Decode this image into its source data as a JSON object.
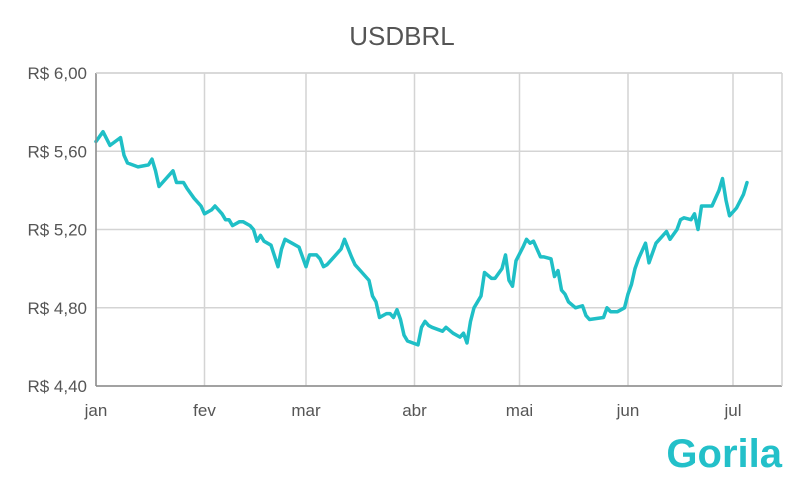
{
  "chart_data": {
    "type": "line",
    "title": "USDBRL",
    "xlabel": "",
    "ylabel": "",
    "ylim": [
      4.4,
      6.0
    ],
    "yticks": [
      {
        "value": 4.4,
        "label": "R$ 4,40"
      },
      {
        "value": 4.8,
        "label": "R$ 4,80"
      },
      {
        "value": 5.2,
        "label": "R$ 5,20"
      },
      {
        "value": 5.6,
        "label": "R$ 5,60"
      },
      {
        "value": 6.0,
        "label": "R$ 6,00"
      }
    ],
    "xlim": [
      "2020-01-01",
      "2020-07-15"
    ],
    "xticks": [
      {
        "date": "2020-01-01",
        "label": "jan"
      },
      {
        "date": "2020-02-01",
        "label": "fev"
      },
      {
        "date": "2020-03-01",
        "label": "mar"
      },
      {
        "date": "2020-04-01",
        "label": "abr"
      },
      {
        "date": "2020-05-01",
        "label": "mai"
      },
      {
        "date": "2020-06-01",
        "label": "jun"
      },
      {
        "date": "2020-07-01",
        "label": "jul"
      }
    ],
    "grid": true,
    "color": "#1fbfc6",
    "series": [
      {
        "values": [
          [
            "2020-01-01",
            5.65
          ],
          [
            "2020-01-03",
            5.7
          ],
          [
            "2020-01-05",
            5.63
          ],
          [
            "2020-01-08",
            5.67
          ],
          [
            "2020-01-09",
            5.58
          ],
          [
            "2020-01-10",
            5.54
          ],
          [
            "2020-01-13",
            5.52
          ],
          [
            "2020-01-16",
            5.53
          ],
          [
            "2020-01-17",
            5.56
          ],
          [
            "2020-01-18",
            5.5
          ],
          [
            "2020-01-19",
            5.42
          ],
          [
            "2020-01-21",
            5.46
          ],
          [
            "2020-01-23",
            5.5
          ],
          [
            "2020-01-24",
            5.44
          ],
          [
            "2020-01-26",
            5.44
          ],
          [
            "2020-01-27",
            5.41
          ],
          [
            "2020-01-29",
            5.36
          ],
          [
            "2020-01-31",
            5.32
          ],
          [
            "2020-02-01",
            5.28
          ],
          [
            "2020-02-03",
            5.3
          ],
          [
            "2020-02-04",
            5.32
          ],
          [
            "2020-02-06",
            5.28
          ],
          [
            "2020-02-07",
            5.25
          ],
          [
            "2020-02-08",
            5.25
          ],
          [
            "2020-02-09",
            5.22
          ],
          [
            "2020-02-11",
            5.24
          ],
          [
            "2020-02-12",
            5.24
          ],
          [
            "2020-02-14",
            5.22
          ],
          [
            "2020-02-15",
            5.2
          ],
          [
            "2020-02-16",
            5.14
          ],
          [
            "2020-02-17",
            5.17
          ],
          [
            "2020-02-18",
            5.14
          ],
          [
            "2020-02-20",
            5.12
          ],
          [
            "2020-02-22",
            5.01
          ],
          [
            "2020-02-23",
            5.1
          ],
          [
            "2020-02-24",
            5.15
          ],
          [
            "2020-02-26",
            5.13
          ],
          [
            "2020-02-28",
            5.11
          ],
          [
            "2020-03-01",
            5.01
          ],
          [
            "2020-03-02",
            5.07
          ],
          [
            "2020-03-04",
            5.07
          ],
          [
            "2020-03-05",
            5.05
          ],
          [
            "2020-03-06",
            5.01
          ],
          [
            "2020-03-07",
            5.02
          ],
          [
            "2020-03-09",
            5.06
          ],
          [
            "2020-03-11",
            5.1
          ],
          [
            "2020-03-12",
            5.15
          ],
          [
            "2020-03-14",
            5.06
          ],
          [
            "2020-03-15",
            5.02
          ],
          [
            "2020-03-17",
            4.98
          ],
          [
            "2020-03-19",
            4.94
          ],
          [
            "2020-03-20",
            4.86
          ],
          [
            "2020-03-21",
            4.83
          ],
          [
            "2020-03-22",
            4.75
          ],
          [
            "2020-03-24",
            4.77
          ],
          [
            "2020-03-25",
            4.77
          ],
          [
            "2020-03-26",
            4.75
          ],
          [
            "2020-03-27",
            4.79
          ],
          [
            "2020-03-28",
            4.74
          ],
          [
            "2020-03-29",
            4.66
          ],
          [
            "2020-03-30",
            4.63
          ],
          [
            "2020-04-02",
            4.61
          ],
          [
            "2020-04-03",
            4.7
          ],
          [
            "2020-04-04",
            4.73
          ],
          [
            "2020-04-05",
            4.71
          ],
          [
            "2020-04-06",
            4.7
          ],
          [
            "2020-04-09",
            4.68
          ],
          [
            "2020-04-10",
            4.7
          ],
          [
            "2020-04-12",
            4.67
          ],
          [
            "2020-04-14",
            4.65
          ],
          [
            "2020-04-15",
            4.67
          ],
          [
            "2020-04-16",
            4.62
          ],
          [
            "2020-04-17",
            4.73
          ],
          [
            "2020-04-18",
            4.8
          ],
          [
            "2020-04-20",
            4.86
          ],
          [
            "2020-04-21",
            4.98
          ],
          [
            "2020-04-23",
            4.95
          ],
          [
            "2020-04-24",
            4.95
          ],
          [
            "2020-04-26",
            5.0
          ],
          [
            "2020-04-27",
            5.07
          ],
          [
            "2020-04-28",
            4.94
          ],
          [
            "2020-04-29",
            4.91
          ],
          [
            "2020-04-30",
            5.04
          ],
          [
            "2020-05-02",
            5.11
          ],
          [
            "2020-05-03",
            5.15
          ],
          [
            "2020-05-04",
            5.13
          ],
          [
            "2020-05-05",
            5.14
          ],
          [
            "2020-05-07",
            5.06
          ],
          [
            "2020-05-08",
            5.06
          ],
          [
            "2020-05-10",
            5.05
          ],
          [
            "2020-05-11",
            4.96
          ],
          [
            "2020-05-12",
            4.99
          ],
          [
            "2020-05-13",
            4.89
          ],
          [
            "2020-05-14",
            4.87
          ],
          [
            "2020-05-15",
            4.83
          ],
          [
            "2020-05-17",
            4.8
          ],
          [
            "2020-05-19",
            4.81
          ],
          [
            "2020-05-20",
            4.76
          ],
          [
            "2020-05-21",
            4.74
          ],
          [
            "2020-05-25",
            4.75
          ],
          [
            "2020-05-26",
            4.8
          ],
          [
            "2020-05-27",
            4.78
          ],
          [
            "2020-05-29",
            4.78
          ],
          [
            "2020-05-31",
            4.8
          ],
          [
            "2020-06-01",
            4.87
          ],
          [
            "2020-06-02",
            4.92
          ],
          [
            "2020-06-03",
            5.0
          ],
          [
            "2020-06-04",
            5.05
          ],
          [
            "2020-06-06",
            5.13
          ],
          [
            "2020-06-07",
            5.03
          ],
          [
            "2020-06-09",
            5.13
          ],
          [
            "2020-06-10",
            5.15
          ],
          [
            "2020-06-12",
            5.19
          ],
          [
            "2020-06-13",
            5.15
          ],
          [
            "2020-06-15",
            5.2
          ],
          [
            "2020-06-16",
            5.25
          ],
          [
            "2020-06-17",
            5.26
          ],
          [
            "2020-06-19",
            5.25
          ],
          [
            "2020-06-20",
            5.28
          ],
          [
            "2020-06-21",
            5.2
          ],
          [
            "2020-06-22",
            5.32
          ],
          [
            "2020-06-25",
            5.32
          ],
          [
            "2020-06-27",
            5.4
          ],
          [
            "2020-06-28",
            5.46
          ],
          [
            "2020-06-29",
            5.35
          ],
          [
            "2020-06-30",
            5.27
          ],
          [
            "2020-07-02",
            5.31
          ],
          [
            "2020-07-04",
            5.38
          ],
          [
            "2020-07-05",
            5.44
          ]
        ]
      }
    ]
  },
  "brand": {
    "logo_text": "Gorila",
    "logo_color": "#23c0c9"
  }
}
